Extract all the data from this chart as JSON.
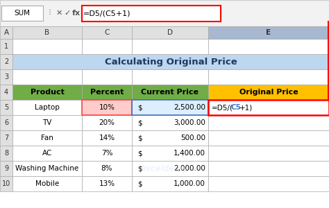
{
  "title": "Calculating Original Price",
  "formula_bar_text": "=D5/(C5+1)",
  "col_headers": [
    "A",
    "B",
    "C",
    "D",
    "E"
  ],
  "row_headers": [
    "1",
    "2",
    "3",
    "4",
    "5",
    "6",
    "7",
    "8",
    "9",
    "10"
  ],
  "table_headers": [
    "Product",
    "Percent",
    "Current Price",
    "Original Price"
  ],
  "products": [
    "Laptop",
    "TV",
    "Fan",
    "AC",
    "Washing Machine",
    "Mobile"
  ],
  "percents": [
    "10%",
    "20%",
    "14%",
    "7%",
    "8%",
    "13%"
  ],
  "prices": [
    "2,500.00",
    "3,000.00",
    "500.00",
    "1,400.00",
    "2,000.00",
    "1,000.00"
  ],
  "formula_cell": "=D5/(C5+1)",
  "header_bg": "#4472C4",
  "header_text": "#FFFFFF",
  "title_bg": "#BDD7EE",
  "green_header_bg": "#70AD47",
  "orange_header_bg": "#FFC000",
  "pink_cell_bg": "#FFCCCC",
  "light_blue_cell_bg": "#DDEEFF",
  "formula_cell_border": "#FF0000",
  "grid_color": "#AAAAAA",
  "bg_color": "#FFFFFF",
  "toolbar_bg": "#F2F2F2",
  "name_box_text": "SUM",
  "watermark": "exceldemy"
}
